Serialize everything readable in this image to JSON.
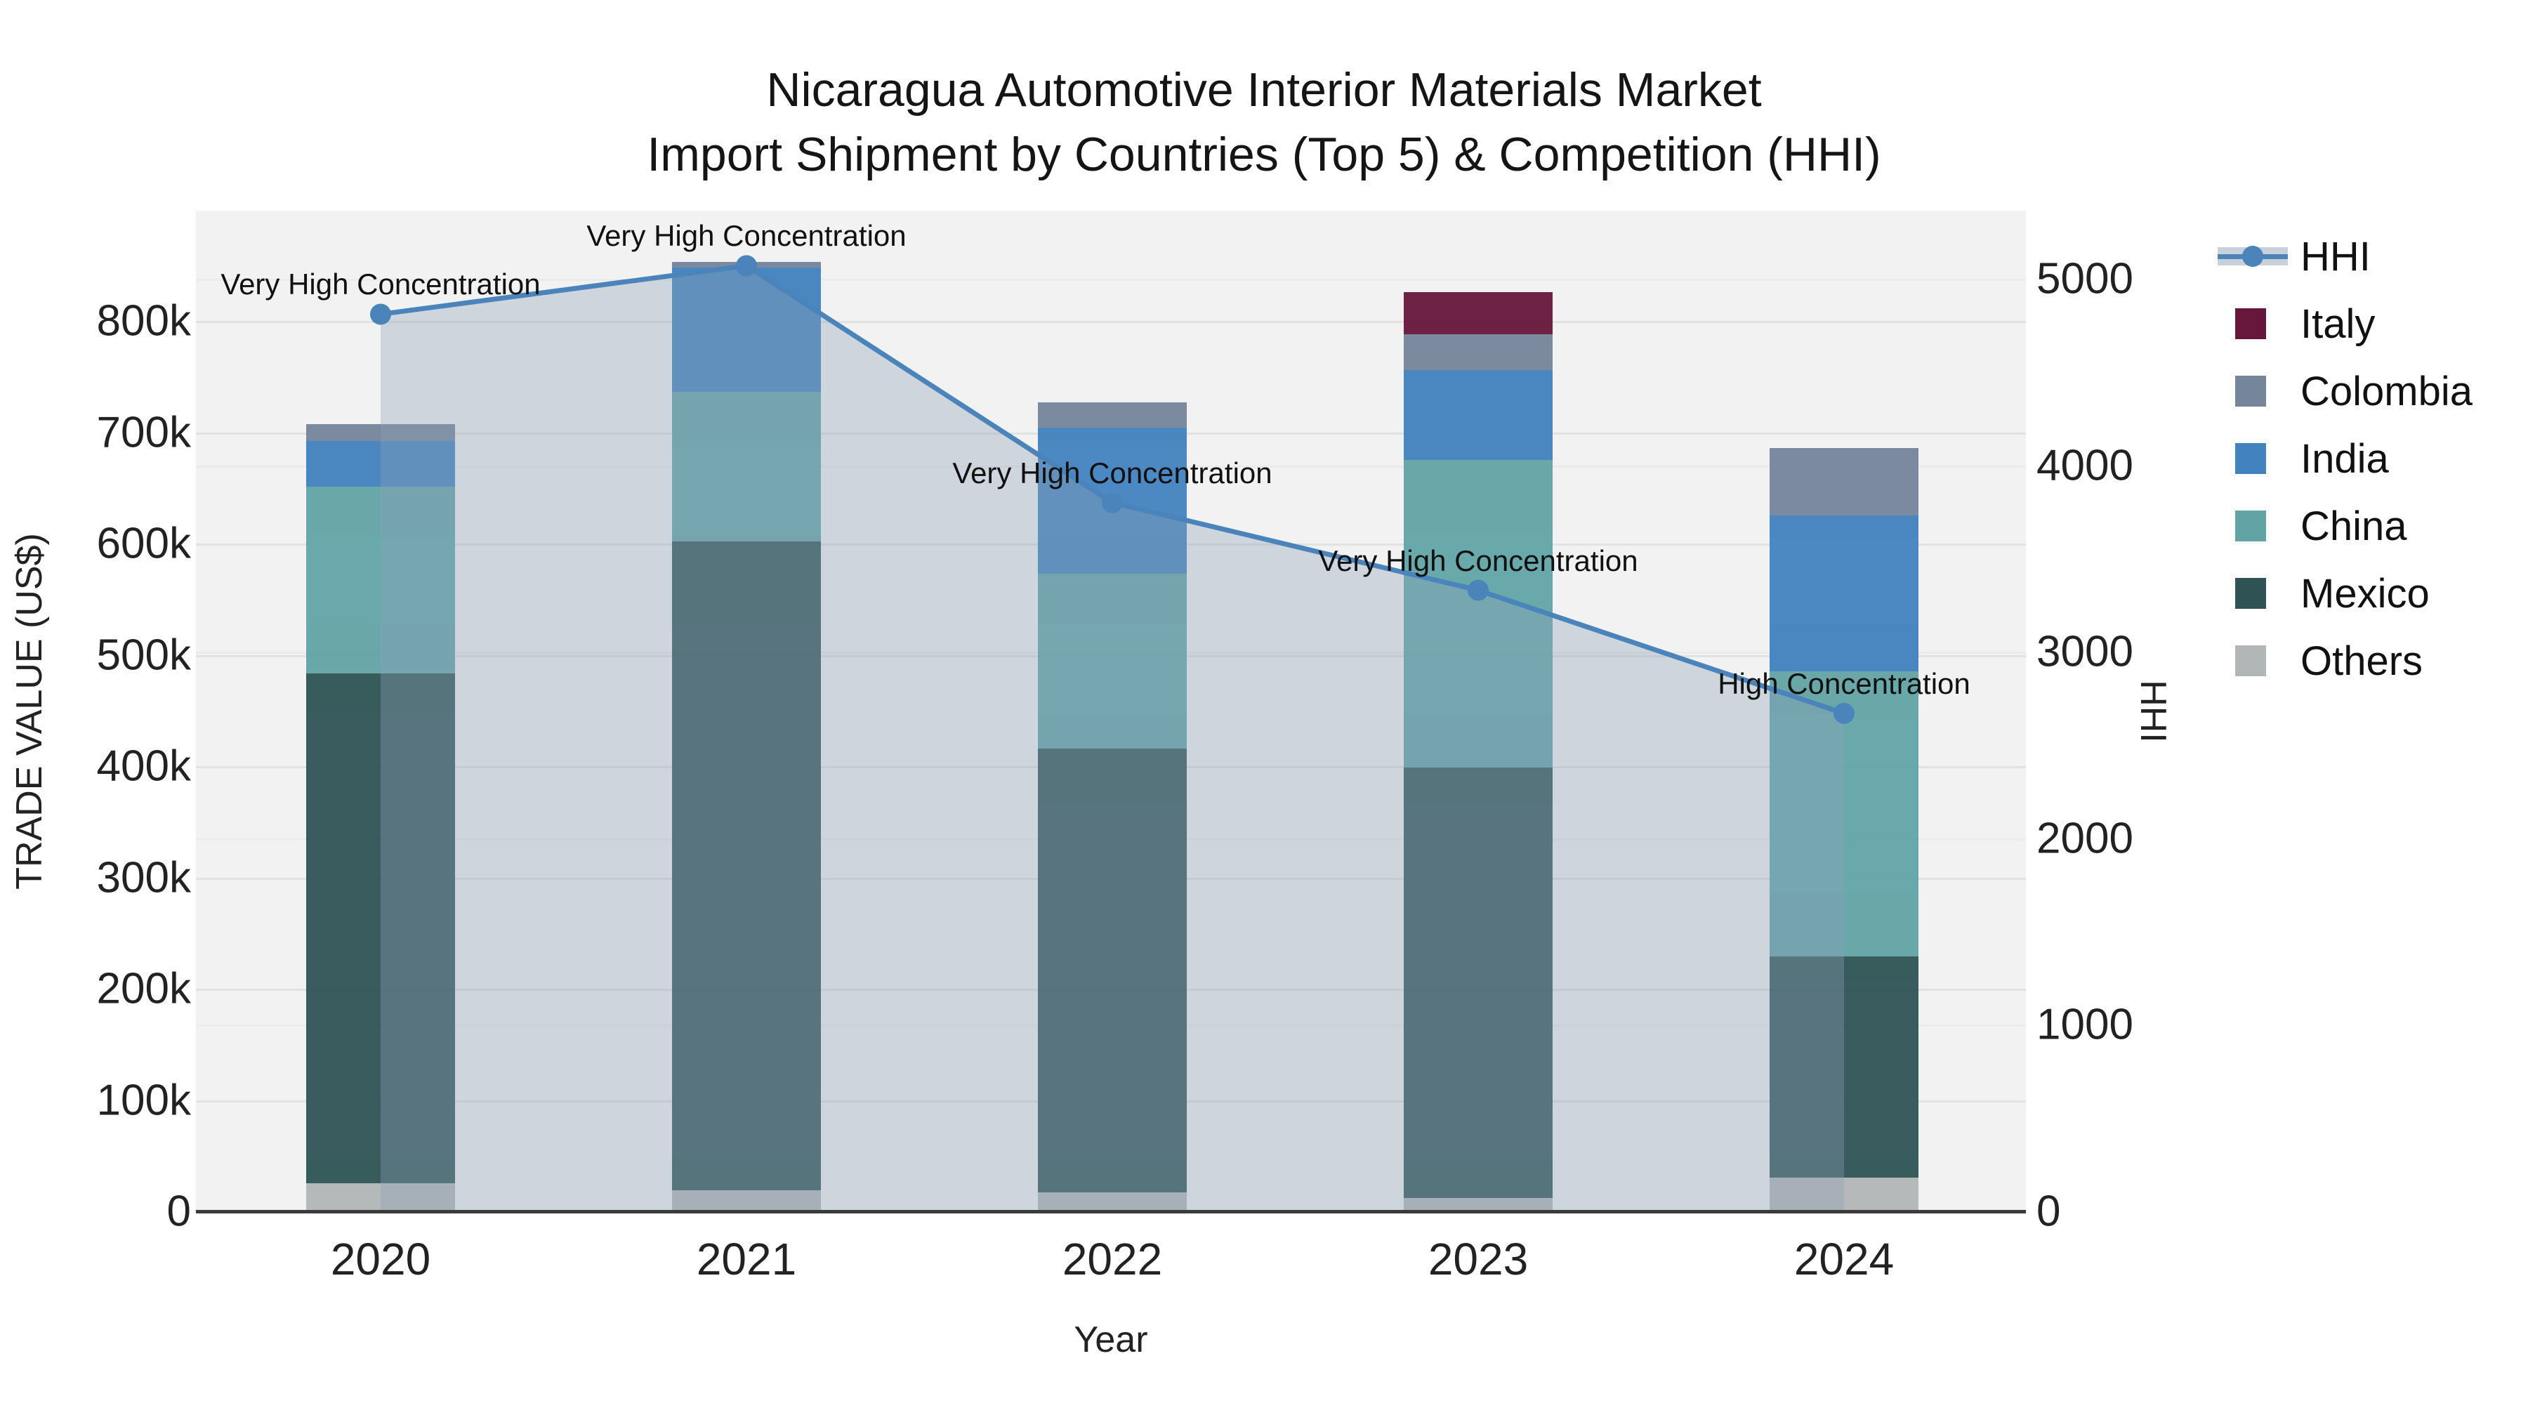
{
  "title": {
    "line1": "Nicaragua Automotive Interior Materials Market",
    "line2": "Import Shipment by Countries (Top 5) & Competition (HHI)"
  },
  "axes": {
    "x": {
      "title": "Year",
      "tick_labels": [
        "2020",
        "2021",
        "2022",
        "2023",
        "2024"
      ]
    },
    "y_left": {
      "title": "TRADE VALUE (US$)",
      "tick_labels": [
        "0",
        "100k",
        "200k",
        "300k",
        "400k",
        "500k",
        "600k",
        "700k",
        "800k"
      ],
      "tick_values": [
        0,
        100000,
        200000,
        300000,
        400000,
        500000,
        600000,
        700000,
        800000
      ]
    },
    "y_right": {
      "title": "HHI",
      "tick_labels": [
        "0",
        "1000",
        "2000",
        "3000",
        "4000",
        "5000"
      ],
      "tick_values": [
        0,
        1000,
        2000,
        3000,
        4000,
        5000
      ]
    }
  },
  "colors": {
    "hhi_line": "#4A84BB",
    "hhi_area_fill": "rgba(140,160,184,0.36)",
    "italy": "#66173B",
    "colombia": "#75859A",
    "india": "#4282BE",
    "china": "#62A4A6",
    "mexico": "#2F5355",
    "others": "#B3B6B7",
    "plot_background": "#F2F2F2",
    "grid_left": "#E2E2E2",
    "grid_right": "#EBEBEB",
    "axis_line": "#3B3B3B"
  },
  "legend": {
    "items": [
      {
        "label": "HHI",
        "type": "line",
        "color": "#4A84BB",
        "band_color": "#C9D0DA"
      },
      {
        "label": "Italy",
        "type": "swatch",
        "color": "#66173B"
      },
      {
        "label": "Colombia",
        "type": "swatch",
        "color": "#75859A"
      },
      {
        "label": "India",
        "type": "swatch",
        "color": "#4282BE"
      },
      {
        "label": "China",
        "type": "swatch",
        "color": "#62A4A6"
      },
      {
        "label": "Mexico",
        "type": "swatch",
        "color": "#2F5355"
      },
      {
        "label": "Others",
        "type": "swatch",
        "color": "#B3B6B7"
      }
    ]
  },
  "chart_data": {
    "type": "bar+line",
    "title": "Nicaragua Automotive Interior Materials Market — Import Shipment by Countries (Top 5) & Competition (HHI)",
    "categories": [
      "2020",
      "2021",
      "2022",
      "2023",
      "2024"
    ],
    "bar_unit": "US$",
    "stack_order_bottom_to_top": [
      "Others",
      "Mexico",
      "China",
      "India",
      "Colombia",
      "Italy"
    ],
    "series": [
      {
        "name": "Others",
        "color": "#B3B6B7",
        "values": [
          25000,
          19000,
          17000,
          12000,
          30000
        ]
      },
      {
        "name": "Mexico",
        "color": "#2F5355",
        "values": [
          458000,
          583000,
          399000,
          387000,
          199000
        ]
      },
      {
        "name": "China",
        "color": "#62A4A6",
        "values": [
          168000,
          134000,
          157000,
          276000,
          256000
        ]
      },
      {
        "name": "India",
        "color": "#4282BE",
        "values": [
          41000,
          112000,
          131000,
          81000,
          140000
        ]
      },
      {
        "name": "Colombia",
        "color": "#75859A",
        "values": [
          15000,
          5000,
          23000,
          32000,
          61000
        ]
      },
      {
        "name": "Italy",
        "color": "#66173B",
        "values": [
          0,
          0,
          0,
          38000,
          0
        ]
      }
    ],
    "bar_totals": [
      707000,
      853000,
      727000,
      826000,
      686000
    ],
    "line_series": {
      "name": "HHI",
      "axis": "right",
      "color": "#4A84BB",
      "area_fill": "rgba(140,160,184,0.36)",
      "values": [
        4810,
        5070,
        3800,
        3330,
        2670
      ]
    },
    "annotations": [
      {
        "category": "2020",
        "text": "Very High Concentration"
      },
      {
        "category": "2021",
        "text": "Very High Concentration"
      },
      {
        "category": "2022",
        "text": "Very High Concentration"
      },
      {
        "category": "2023",
        "text": "Very High Concentration"
      },
      {
        "category": "2024",
        "text": "High Concentration"
      }
    ],
    "xlabel": "Year",
    "ylabel_left": "TRADE VALUE (US$)",
    "ylabel_right": "HHI",
    "ylim_left": [
      0,
      899000
    ],
    "ylim_right": [
      0,
      5365
    ],
    "grid": true,
    "legend_position": "right"
  }
}
